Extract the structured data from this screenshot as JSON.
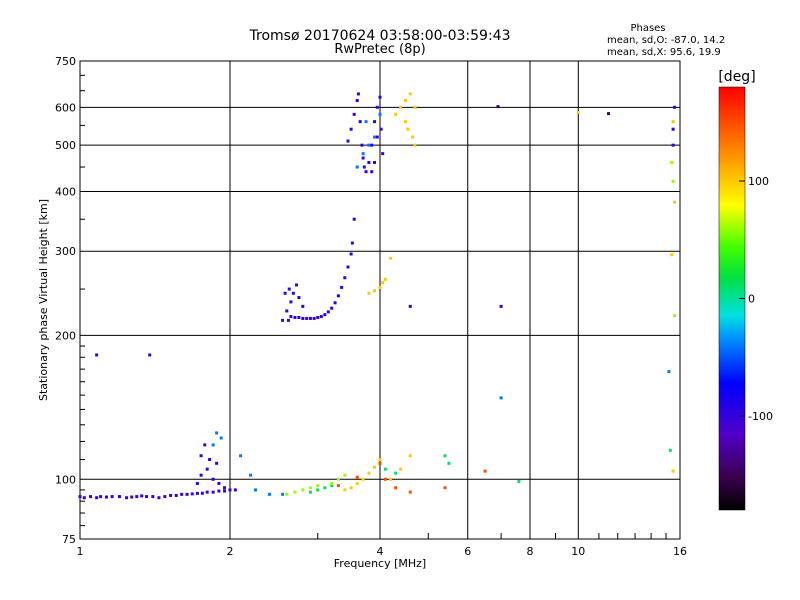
{
  "chart_data": {
    "type": "scatter",
    "title": "Tromsø 20170624 03:58:00-03:59:43",
    "subtitle": "RwPretec (8p)",
    "xlabel": "Frequency [MHz]",
    "ylabel": "Stationary phase Virtual Height [km]",
    "xscale": "log",
    "yscale": "log",
    "xlim": [
      1,
      16
    ],
    "ylim": [
      75,
      750
    ],
    "x_ticks": [
      "1",
      "2",
      "4",
      "6",
      "8",
      "10",
      "16"
    ],
    "x_tick_values": [
      1,
      2,
      4,
      6,
      8,
      10,
      16
    ],
    "y_ticks": [
      "75",
      "100",
      "200",
      "300",
      "400",
      "500",
      "600",
      "750"
    ],
    "y_tick_values": [
      75,
      100,
      200,
      300,
      400,
      500,
      600,
      750
    ],
    "grid": true,
    "legend": {
      "title": "Phases",
      "lines": [
        "mean, sd,O: -87.0, 14.2",
        "mean, sd,X:  95.6, 19.9"
      ],
      "placement": "top-right"
    },
    "colorbar": {
      "label": "[deg]",
      "range": [
        -180,
        180
      ],
      "ticks": [
        "100",
        "0",
        "-100"
      ],
      "tick_values": [
        100,
        0,
        -100
      ]
    },
    "series": [
      {
        "phase_deg": -100,
        "points": [
          [
            1.0,
            92
          ],
          [
            1.02,
            91.5
          ],
          [
            1.05,
            92
          ],
          [
            1.08,
            91.5
          ],
          [
            1.1,
            92
          ],
          [
            1.13,
            91.8
          ],
          [
            1.16,
            92
          ],
          [
            1.2,
            92
          ],
          [
            1.24,
            91.5
          ],
          [
            1.27,
            91.8
          ],
          [
            1.3,
            92
          ],
          [
            1.33,
            92.3
          ],
          [
            1.36,
            92
          ],
          [
            1.4,
            92
          ],
          [
            1.44,
            91.5
          ],
          [
            1.48,
            92
          ],
          [
            1.52,
            92.5
          ],
          [
            1.56,
            92.5
          ],
          [
            1.6,
            93
          ],
          [
            1.64,
            93
          ],
          [
            1.68,
            93.2
          ],
          [
            1.72,
            93.4
          ],
          [
            1.76,
            93.5
          ],
          [
            1.8,
            94
          ],
          [
            1.85,
            94
          ],
          [
            1.9,
            94.5
          ],
          [
            1.95,
            94.5
          ],
          [
            2.0,
            95
          ],
          [
            2.05,
            95
          ],
          [
            1.08,
            182
          ],
          [
            1.38,
            182
          ],
          [
            2.62,
            215
          ],
          [
            2.65,
            219
          ],
          [
            2.7,
            218
          ],
          [
            2.75,
            218
          ],
          [
            2.8,
            217
          ],
          [
            2.85,
            217
          ],
          [
            2.9,
            217
          ],
          [
            2.95,
            217
          ],
          [
            3.0,
            218
          ],
          [
            3.05,
            219
          ],
          [
            3.1,
            221
          ],
          [
            3.15,
            224
          ],
          [
            3.2,
            228
          ],
          [
            3.25,
            234
          ],
          [
            3.3,
            242
          ],
          [
            3.35,
            252
          ],
          [
            3.4,
            264
          ],
          [
            3.45,
            278
          ],
          [
            3.5,
            296
          ],
          [
            3.52,
            312
          ],
          [
            3.55,
            350
          ],
          [
            2.55,
            215
          ],
          [
            2.6,
            225
          ],
          [
            2.65,
            235
          ],
          [
            2.68,
            245
          ],
          [
            2.72,
            255
          ],
          [
            2.58,
            245
          ],
          [
            2.63,
            250
          ],
          [
            2.75,
            240
          ],
          [
            2.8,
            230
          ],
          [
            3.45,
            510
          ],
          [
            3.5,
            540
          ],
          [
            3.55,
            580
          ],
          [
            3.6,
            620
          ],
          [
            3.62,
            640
          ],
          [
            3.65,
            560
          ],
          [
            3.68,
            500
          ],
          [
            3.7,
            470
          ],
          [
            3.72,
            450
          ],
          [
            3.75,
            440
          ],
          [
            3.8,
            460
          ],
          [
            3.85,
            500
          ],
          [
            3.9,
            560
          ],
          [
            3.95,
            600
          ],
          [
            4.0,
            630
          ],
          [
            3.95,
            520
          ],
          [
            3.9,
            460
          ],
          [
            3.85,
            440
          ],
          [
            4.05,
            480
          ],
          [
            4.02,
            540
          ],
          [
            1.75,
            112
          ],
          [
            1.78,
            118
          ],
          [
            1.8,
            105
          ],
          [
            1.82,
            110
          ],
          [
            1.85,
            100
          ],
          [
            1.88,
            108
          ],
          [
            1.9,
            98
          ],
          [
            1.72,
            98
          ],
          [
            1.75,
            102
          ],
          [
            1.95,
            96
          ],
          [
            4.6,
            230
          ],
          [
            7.0,
            230
          ],
          [
            15.5,
            500
          ],
          [
            15.6,
            600
          ],
          [
            15.5,
            540
          ]
        ]
      },
      {
        "phase_deg": -40,
        "points": [
          [
            1.92,
            122
          ],
          [
            1.88,
            125
          ],
          [
            1.85,
            118
          ],
          [
            2.1,
            112
          ],
          [
            2.2,
            102
          ],
          [
            2.25,
            95
          ],
          [
            2.4,
            93
          ],
          [
            2.55,
            93
          ],
          [
            7.0,
            148
          ],
          [
            15.2,
            168
          ],
          [
            3.6,
            450
          ],
          [
            3.8,
            500
          ],
          [
            4.0,
            580
          ],
          [
            3.9,
            520
          ],
          [
            3.7,
            480
          ],
          [
            3.75,
            560
          ]
        ]
      },
      {
        "phase_deg": 10,
        "points": [
          [
            2.9,
            94
          ],
          [
            3.0,
            95
          ],
          [
            3.1,
            96
          ],
          [
            3.2,
            97
          ],
          [
            5.4,
            112
          ],
          [
            5.5,
            108
          ],
          [
            7.6,
            99
          ],
          [
            15.3,
            115
          ],
          [
            4.1,
            105
          ],
          [
            4.3,
            103
          ]
        ]
      },
      {
        "phase_deg": 60,
        "points": [
          [
            2.6,
            93
          ],
          [
            2.7,
            94
          ],
          [
            2.8,
            95
          ],
          [
            2.9,
            96
          ],
          [
            3.0,
            97
          ],
          [
            3.2,
            98
          ],
          [
            3.3,
            100
          ],
          [
            3.4,
            102
          ],
          [
            15.6,
            220
          ],
          [
            15.5,
            420
          ],
          [
            15.4,
            460
          ]
        ]
      },
      {
        "phase_deg": 100,
        "points": [
          [
            3.4,
            95
          ],
          [
            3.5,
            96
          ],
          [
            3.6,
            98
          ],
          [
            3.7,
            100
          ],
          [
            3.8,
            103
          ],
          [
            3.9,
            106
          ],
          [
            4.0,
            110
          ],
          [
            4.2,
            100
          ],
          [
            4.4,
            105
          ],
          [
            4.6,
            112
          ],
          [
            3.8,
            245
          ],
          [
            3.9,
            248
          ],
          [
            4.0,
            252
          ],
          [
            4.05,
            258
          ],
          [
            4.1,
            262
          ],
          [
            4.2,
            290
          ],
          [
            4.3,
            580
          ],
          [
            4.4,
            600
          ],
          [
            4.5,
            620
          ],
          [
            4.6,
            640
          ],
          [
            4.5,
            560
          ],
          [
            4.55,
            540
          ],
          [
            4.65,
            520
          ],
          [
            4.7,
            500
          ],
          [
            4.7,
            600
          ],
          [
            10.0,
            585
          ],
          [
            15.5,
            560
          ],
          [
            15.6,
            380
          ],
          [
            15.4,
            295
          ],
          [
            15.5,
            104
          ]
        ]
      },
      {
        "phase_deg": 150,
        "points": [
          [
            3.3,
            97
          ],
          [
            3.6,
            101
          ],
          [
            4.1,
            100
          ],
          [
            4.3,
            96
          ],
          [
            4.6,
            94
          ],
          [
            5.4,
            96
          ],
          [
            6.5,
            104
          ],
          [
            4.0,
            108
          ]
        ]
      },
      {
        "phase_deg": -150,
        "points": [
          [
            6.9,
            602
          ],
          [
            11.5,
            582
          ]
        ]
      }
    ]
  }
}
